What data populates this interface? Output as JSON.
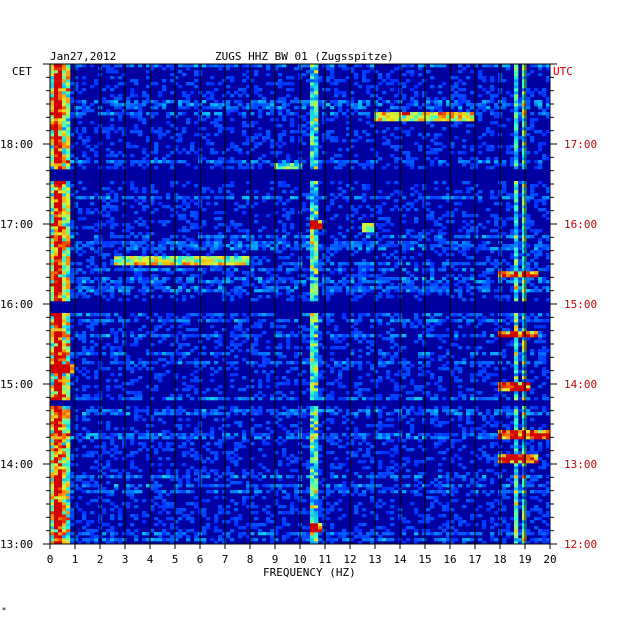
{
  "header": {
    "date": "Jan27,2012",
    "station": "ZUGS HHZ BW 01 (Zugsspitze)",
    "left_tz": "CET",
    "right_tz": "UTC"
  },
  "corner_mark": "*",
  "colors": {
    "background": "#0000a0",
    "left_labels": "#000000",
    "right_labels": "#cc0000",
    "grid": "#000000"
  },
  "chart_data": {
    "type": "heatmap",
    "title": "ZUGS HHZ BW 01 (Zugsspitze)",
    "xlabel": "FREQUENCY (HZ)",
    "ylabel": "",
    "xlim": [
      0,
      20
    ],
    "ylim_cet_hours": [
      13.0,
      19.0
    ],
    "x_ticks": [
      "0",
      "1",
      "2",
      "3",
      "4",
      "5",
      "6",
      "7",
      "8",
      "9",
      "10",
      "11",
      "12",
      "13",
      "14",
      "15",
      "16",
      "17",
      "18",
      "19",
      "20"
    ],
    "y_ticks_left": [
      {
        "hour": 18,
        "label": "18:00"
      },
      {
        "hour": 17,
        "label": "17:00"
      },
      {
        "hour": 16,
        "label": "16:00"
      },
      {
        "hour": 15,
        "label": "15:00"
      },
      {
        "hour": 14,
        "label": "14:00"
      },
      {
        "hour": 13,
        "label": "13:00"
      }
    ],
    "y_ticks_right": [
      {
        "hour": 18,
        "label": "17:00"
      },
      {
        "hour": 17,
        "label": "16:00"
      },
      {
        "hour": 16,
        "label": "15:00"
      },
      {
        "hour": 15,
        "label": "14:00"
      },
      {
        "hour": 14,
        "label": "13:00"
      },
      {
        "hour": 13,
        "label": "12:00"
      }
    ],
    "quiet_bands_cet_hours": [
      [
        17.53,
        17.67
      ],
      [
        15.87,
        16.05
      ],
      [
        14.72,
        14.8
      ]
    ],
    "persistent_lines_hz": [
      0.2,
      0.4,
      10.6,
      18.6,
      19.0
    ],
    "events": [
      {
        "hour": 16.0,
        "fmin": 0.3,
        "fmax": 3.0,
        "strength": 0.8
      },
      {
        "hour": 15.62,
        "fmin": 18.0,
        "fmax": 19.5,
        "strength": 0.9
      },
      {
        "hour": 14.97,
        "fmin": 18.0,
        "fmax": 19.2,
        "strength": 0.85
      },
      {
        "hour": 14.37,
        "fmin": 18.0,
        "fmax": 20.0,
        "strength": 0.9
      },
      {
        "hour": 14.07,
        "fmin": 18.0,
        "fmax": 19.5,
        "strength": 0.85
      },
      {
        "hour": 16.37,
        "fmin": 18.0,
        "fmax": 19.5,
        "strength": 0.8
      },
      {
        "hour": 16.55,
        "fmin": 2.5,
        "fmax": 8.0,
        "strength": 0.55
      },
      {
        "hour": 18.35,
        "fmin": 13.0,
        "fmax": 17.0,
        "strength": 0.6
      },
      {
        "hour": 17.0,
        "fmin": 10.4,
        "fmax": 10.8,
        "strength": 0.9
      },
      {
        "hour": 17.7,
        "fmin": 9.0,
        "fmax": 10.0,
        "strength": 0.5
      },
      {
        "hour": 16.95,
        "fmin": 12.5,
        "fmax": 13.0,
        "strength": 0.6
      },
      {
        "hour": 15.2,
        "fmin": 0.0,
        "fmax": 1.0,
        "strength": 0.7
      },
      {
        "hour": 13.2,
        "fmin": 10.4,
        "fmax": 10.8,
        "strength": 0.8
      }
    ]
  }
}
